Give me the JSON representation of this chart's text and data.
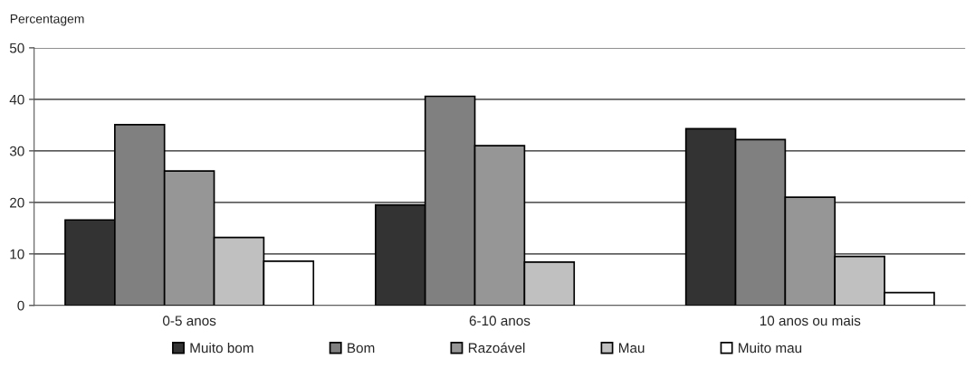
{
  "chart_data": {
    "type": "bar",
    "ylabel": "Percentagem",
    "categories": [
      "0-5 anos",
      "6-10 anos",
      "10 anos ou mais"
    ],
    "series": [
      {
        "name": "Muito bom",
        "color": "#333333",
        "values": [
          16.6,
          19.5,
          34.3
        ]
      },
      {
        "name": "Bom",
        "color": "#808080",
        "values": [
          35.1,
          40.6,
          32.2
        ]
      },
      {
        "name": "Razoável",
        "color": "#969696",
        "values": [
          26.1,
          31.0,
          21.0
        ]
      },
      {
        "name": "Mau",
        "color": "#c0c0c0",
        "values": [
          13.2,
          8.4,
          9.5
        ]
      },
      {
        "name": "Muito mau",
        "color": "#ffffff",
        "values": [
          8.6,
          null,
          2.5
        ]
      }
    ],
    "ylim": [
      0,
      50
    ],
    "yticks": [
      0,
      10,
      20,
      30,
      40,
      50
    ],
    "grid": "y",
    "legend": "bottom"
  }
}
